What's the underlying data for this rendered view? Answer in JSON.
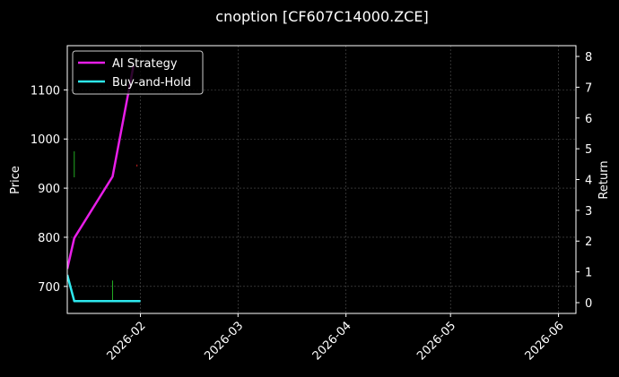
{
  "chart_data": {
    "type": "line",
    "title": "cnoption [CF607C14000.ZCE]",
    "xlabel": "",
    "ylabel": "Price",
    "y2label": "Return",
    "xlim": [
      "2026-01-11",
      "2026-06-06"
    ],
    "ylim": [
      645,
      1190
    ],
    "y2lim": [
      -0.35,
      8.35
    ],
    "x_ticks": [
      "2026-02-01",
      "2026-03-01",
      "2026-04-01",
      "2026-05-01",
      "2026-06-01"
    ],
    "x_tick_labels": [
      "2026-02",
      "2026-03",
      "2026-04",
      "2026-05",
      "2026-06"
    ],
    "y_ticks": [
      700,
      800,
      900,
      1000,
      1100
    ],
    "y2_ticks": [
      0,
      1,
      2,
      3,
      4,
      5,
      6,
      7,
      8
    ],
    "grid": true,
    "legend_position": "top-left",
    "series": [
      {
        "name": "AI Strategy",
        "axis": "right",
        "color": "#e81ee8",
        "x": [
          "2026-01-11",
          "2026-01-13",
          "2026-01-24",
          "2026-01-30"
        ],
        "y": [
          1.1,
          2.1,
          4.1,
          7.7
        ]
      },
      {
        "name": "Buy-and-Hold",
        "axis": "right",
        "color": "#2ee8ee",
        "x": [
          "2026-01-11",
          "2026-01-13",
          "2026-01-24",
          "2026-02-01"
        ],
        "y": [
          0.9,
          0.05,
          0.05,
          0.05
        ]
      }
    ],
    "price_marks": [
      {
        "x": "2026-01-13",
        "low": 922,
        "high": 975,
        "color": "#22aa22"
      },
      {
        "x": "2026-01-24",
        "low": 672,
        "high": 712,
        "color": "#22aa22"
      },
      {
        "x": "2026-01-31",
        "low": 944,
        "high": 948,
        "color": "#cc2222"
      }
    ]
  }
}
